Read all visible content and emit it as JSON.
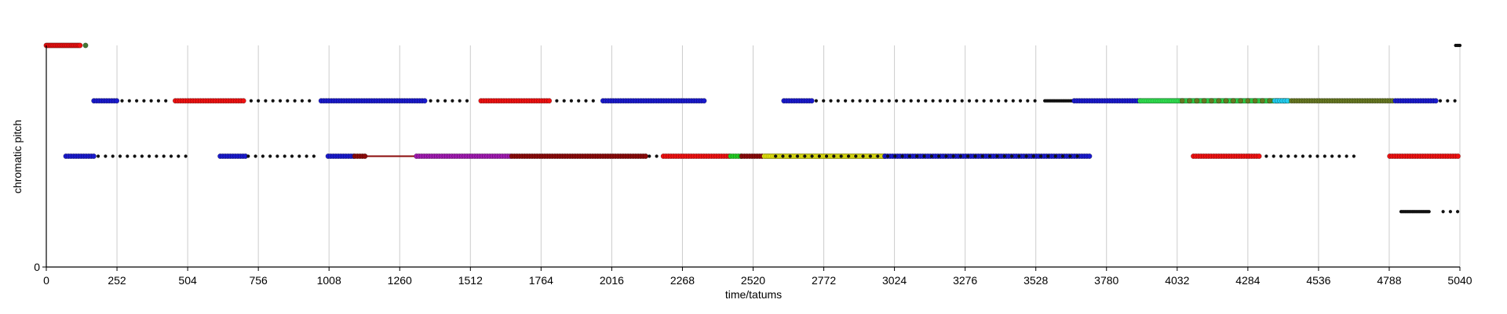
{
  "chart_data": {
    "type": "scatter",
    "title": "",
    "xlabel": "time/tatums",
    "ylabel": "chromatic pitch",
    "xlim": [
      0,
      5040
    ],
    "ylim": [
      0,
      4
    ],
    "grid": "vertical",
    "x_ticks": [
      0,
      252,
      504,
      756,
      1008,
      1260,
      1512,
      1764,
      2016,
      2268,
      2520,
      2772,
      3024,
      3276,
      3528,
      3780,
      4032,
      4284,
      4536,
      4788,
      5040
    ],
    "y_ticks": [
      0
    ],
    "colors": {
      "black": "#111111",
      "blue": "#1a1acc",
      "red": "#ee1111",
      "darkred": "#8a0a0a",
      "purple": "#a01ab0",
      "green": "#22cc22",
      "lime": "#33ee55",
      "yellow": "#eeee11",
      "cyan": "#22ccee",
      "olive": "#667722",
      "darkgreen": "#447733"
    },
    "lines": [
      {
        "y": 2,
        "x0": 1100,
        "x1": 2150,
        "color": "darkred"
      }
    ],
    "segments": [
      {
        "y": 4,
        "x0": 0,
        "x1": 120,
        "color": "red",
        "dense": 2
      },
      {
        "y": 4,
        "x0": 140,
        "x1": 140,
        "color": "darkgreen",
        "dense": 1
      },
      {
        "y": 4,
        "x0": 5025,
        "x1": 5040,
        "color": "black",
        "dense": 2
      },
      {
        "y": 3,
        "x0": 170,
        "x1": 255,
        "color": "blue",
        "dense": 1
      },
      {
        "y": 3,
        "x0": 270,
        "x1": 430,
        "color": "black",
        "dense": 0
      },
      {
        "y": 3,
        "x0": 460,
        "x1": 710,
        "color": "red",
        "dense": 1
      },
      {
        "y": 3,
        "x0": 730,
        "x1": 960,
        "color": "black",
        "dense": 0
      },
      {
        "y": 3,
        "x0": 980,
        "x1": 1350,
        "color": "blue",
        "dense": 1
      },
      {
        "y": 3,
        "x0": 1370,
        "x1": 1510,
        "color": "black",
        "dense": 0
      },
      {
        "y": 3,
        "x0": 1550,
        "x1": 1800,
        "color": "red",
        "dense": 1
      },
      {
        "y": 3,
        "x0": 1820,
        "x1": 1960,
        "color": "black",
        "dense": 0
      },
      {
        "y": 3,
        "x0": 1985,
        "x1": 2350,
        "color": "blue",
        "dense": 1
      },
      {
        "y": 3,
        "x0": 2630,
        "x1": 2730,
        "color": "blue",
        "dense": 1
      },
      {
        "y": 3,
        "x0": 2745,
        "x1": 3550,
        "color": "black",
        "dense": 0
      },
      {
        "y": 3,
        "x0": 3560,
        "x1": 3660,
        "color": "black",
        "dense": 2
      },
      {
        "y": 3,
        "x0": 3665,
        "x1": 3900,
        "color": "blue",
        "dense": 1
      },
      {
        "y": 3,
        "x0": 3900,
        "x1": 4430,
        "color": "lime",
        "dense": 2
      },
      {
        "y": 3,
        "x0": 4050,
        "x1": 4430,
        "color": "olive",
        "dense": 0
      },
      {
        "y": 3,
        "x0": 4380,
        "x1": 4430,
        "color": "cyan",
        "dense": 1
      },
      {
        "y": 3,
        "x0": 4440,
        "x1": 4800,
        "color": "olive",
        "dense": 1
      },
      {
        "y": 3,
        "x0": 4810,
        "x1": 4960,
        "color": "blue",
        "dense": 1
      },
      {
        "y": 3,
        "x0": 4970,
        "x1": 5040,
        "color": "black",
        "dense": 0
      },
      {
        "y": 2,
        "x0": 70,
        "x1": 170,
        "color": "blue",
        "dense": 1
      },
      {
        "y": 2,
        "x0": 185,
        "x1": 520,
        "color": "black",
        "dense": 0
      },
      {
        "y": 2,
        "x0": 620,
        "x1": 710,
        "color": "blue",
        "dense": 1
      },
      {
        "y": 2,
        "x0": 720,
        "x1": 970,
        "color": "black",
        "dense": 0
      },
      {
        "y": 2,
        "x0": 1005,
        "x1": 1095,
        "color": "blue",
        "dense": 1
      },
      {
        "y": 2,
        "x0": 1100,
        "x1": 1140,
        "color": "darkred",
        "dense": 1
      },
      {
        "y": 2,
        "x0": 1320,
        "x1": 1660,
        "color": "purple",
        "dense": 1
      },
      {
        "y": 2,
        "x0": 1660,
        "x1": 2140,
        "color": "darkred",
        "dense": 1
      },
      {
        "y": 2,
        "x0": 2150,
        "x1": 2180,
        "color": "black",
        "dense": 0
      },
      {
        "y": 2,
        "x0": 2200,
        "x1": 2440,
        "color": "red",
        "dense": 1
      },
      {
        "y": 2,
        "x0": 2440,
        "x1": 2480,
        "color": "green",
        "dense": 1
      },
      {
        "y": 2,
        "x0": 2480,
        "x1": 2560,
        "color": "darkred",
        "dense": 1
      },
      {
        "y": 2,
        "x0": 2560,
        "x1": 2990,
        "color": "yellow",
        "dense": 2
      },
      {
        "y": 2,
        "x0": 2600,
        "x1": 2990,
        "color": "black",
        "dense": 0
      },
      {
        "y": 2,
        "x0": 2990,
        "x1": 3720,
        "color": "blue",
        "dense": 1
      },
      {
        "y": 2,
        "x0": 3000,
        "x1": 3700,
        "color": "black",
        "dense": 0
      },
      {
        "y": 2,
        "x0": 4090,
        "x1": 4330,
        "color": "red",
        "dense": 1
      },
      {
        "y": 2,
        "x0": 4350,
        "x1": 4680,
        "color": "black",
        "dense": 0
      },
      {
        "y": 2,
        "x0": 4790,
        "x1": 5040,
        "color": "red",
        "dense": 1
      },
      {
        "y": 1,
        "x0": 4830,
        "x1": 4930,
        "color": "black",
        "dense": 2
      },
      {
        "y": 1,
        "x0": 4980,
        "x1": 5040,
        "color": "black",
        "dense": 0
      }
    ]
  }
}
